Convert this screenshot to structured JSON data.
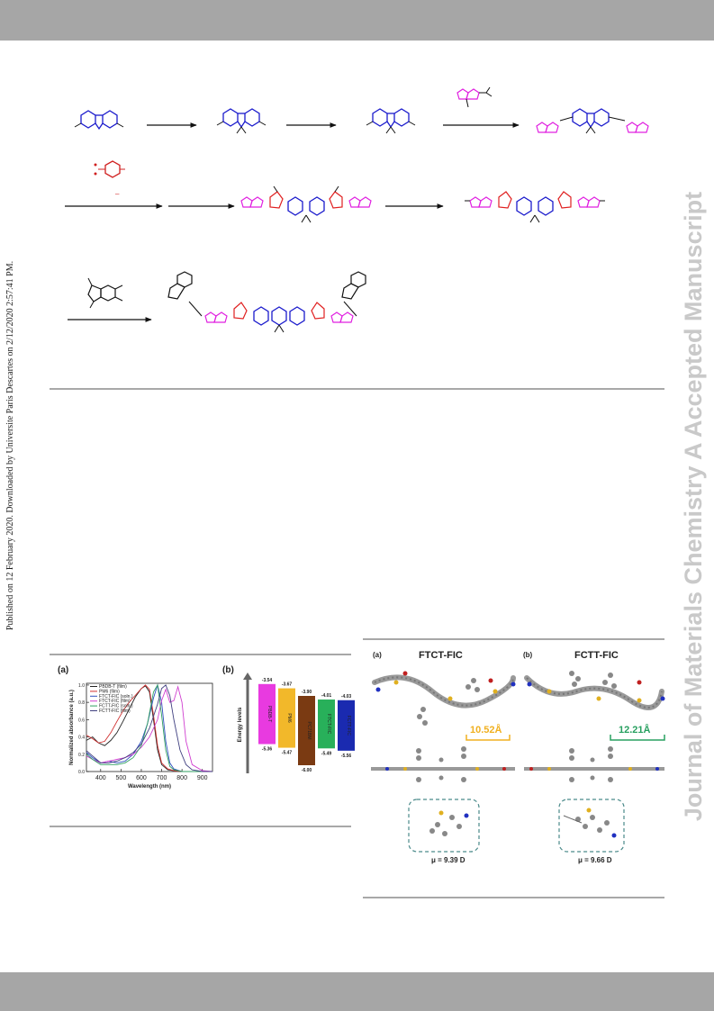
{
  "side_note": "Published on 12 February 2020. Downloaded by Universite Paris Descartes on 2/12/2020 2:57:41 PM.",
  "watermark": "Journal of Materials Chemistry A Accepted Manuscript",
  "fig_absorption": {
    "panel_label": "(a)",
    "legend": [
      {
        "name": "PBDB-T (film)",
        "color": "#222222"
      },
      {
        "name": "PM6 (film)",
        "color": "#d03030"
      },
      {
        "name": "FTCT-FIC (soln.)",
        "color": "#3050c0"
      },
      {
        "name": "FTCT-FIC (film)",
        "color": "#d040d0"
      },
      {
        "name": "FCTT-FIC (soln.)",
        "color": "#30a060"
      },
      {
        "name": "FCTT-FIC (film)",
        "color": "#404080"
      }
    ],
    "xlabel": "Wavelength (nm)",
    "ylabel": "Normalized absorbance (a.u.)",
    "xticks": [
      "400",
      "500",
      "600",
      "700",
      "800",
      "900"
    ],
    "yticks": [
      "0.0",
      "0.2",
      "0.4",
      "0.6",
      "0.8",
      "1.0"
    ]
  },
  "chart_data": {
    "type": "line",
    "xlim": [
      330,
      950
    ],
    "ylim": [
      0,
      1.02
    ],
    "series": [
      {
        "name": "PBDB-T (film)",
        "color": "#222222",
        "x": [
          330,
          360,
          390,
          420,
          450,
          480,
          510,
          540,
          570,
          600,
          620,
          640,
          660,
          680,
          700,
          730,
          760,
          800,
          850,
          900,
          950
        ],
        "y": [
          0.36,
          0.4,
          0.33,
          0.3,
          0.36,
          0.45,
          0.58,
          0.72,
          0.86,
          0.96,
          0.99,
          0.92,
          0.6,
          0.25,
          0.08,
          0.02,
          0.01,
          0.0,
          0.0,
          0.0,
          0.0
        ]
      },
      {
        "name": "PM6 (film)",
        "color": "#d03030",
        "x": [
          330,
          360,
          390,
          420,
          450,
          480,
          510,
          540,
          570,
          600,
          620,
          640,
          660,
          680,
          700,
          730,
          760,
          800,
          850,
          900,
          950
        ],
        "y": [
          0.42,
          0.38,
          0.33,
          0.35,
          0.45,
          0.58,
          0.7,
          0.8,
          0.88,
          0.96,
          1.0,
          0.95,
          0.65,
          0.3,
          0.1,
          0.03,
          0.01,
          0.0,
          0.0,
          0.0,
          0.0
        ]
      },
      {
        "name": "FTCT-FIC (soln.)",
        "color": "#3050c0",
        "x": [
          330,
          360,
          400,
          440,
          480,
          520,
          560,
          600,
          630,
          660,
          680,
          700,
          720,
          740,
          760,
          800,
          850,
          900,
          950
        ],
        "y": [
          0.22,
          0.16,
          0.1,
          0.12,
          0.1,
          0.12,
          0.2,
          0.35,
          0.55,
          0.85,
          1.0,
          0.8,
          0.35,
          0.1,
          0.03,
          0.0,
          0.0,
          0.0,
          0.0
        ]
      },
      {
        "name": "FTCT-FIC (film)",
        "color": "#d040d0",
        "x": [
          330,
          360,
          400,
          440,
          480,
          520,
          560,
          600,
          640,
          680,
          700,
          720,
          740,
          760,
          780,
          800,
          820,
          850,
          900,
          950
        ],
        "y": [
          0.18,
          0.14,
          0.1,
          0.12,
          0.14,
          0.16,
          0.2,
          0.28,
          0.4,
          0.6,
          0.82,
          0.95,
          0.8,
          0.82,
          0.98,
          0.8,
          0.35,
          0.08,
          0.01,
          0.0
        ]
      },
      {
        "name": "FCTT-FIC (soln.)",
        "color": "#30a060",
        "x": [
          330,
          360,
          400,
          440,
          480,
          520,
          560,
          600,
          630,
          660,
          680,
          700,
          720,
          740,
          760,
          800,
          850,
          900,
          950
        ],
        "y": [
          0.2,
          0.14,
          0.08,
          0.08,
          0.08,
          0.1,
          0.16,
          0.3,
          0.55,
          0.92,
          1.0,
          0.65,
          0.25,
          0.06,
          0.02,
          0.0,
          0.0,
          0.0,
          0.0
        ]
      },
      {
        "name": "FCTT-FIC (film)",
        "color": "#404080",
        "x": [
          330,
          360,
          400,
          440,
          480,
          520,
          560,
          600,
          640,
          680,
          700,
          720,
          740,
          760,
          790,
          820,
          850,
          900,
          950
        ],
        "y": [
          0.24,
          0.18,
          0.1,
          0.1,
          0.12,
          0.16,
          0.22,
          0.32,
          0.5,
          0.78,
          0.96,
          1.0,
          0.88,
          0.6,
          0.25,
          0.08,
          0.02,
          0.0,
          0.0
        ]
      }
    ]
  },
  "fig_energy": {
    "panel_label": "(b)",
    "axis_label": "Energy levels",
    "boxes": [
      {
        "name": "PBDB-T",
        "lumo": "-3.54",
        "homo": "-5.36",
        "color": "#e83ae0",
        "lumo_color": "#c030c0"
      },
      {
        "name": "PM6",
        "lumo": "-3.67",
        "homo": "-5.47",
        "color": "#f2b82a",
        "lumo_color": "#d09820"
      },
      {
        "name": "PC71BM",
        "lumo": "-3.90",
        "homo": "-6.00",
        "color": "#7a3a12",
        "lumo_color": "#5a2a0a"
      },
      {
        "name": "FTCT-FIC",
        "lumo": "-4.01",
        "homo": "-5.49",
        "color": "#28b05a",
        "lumo_color": "#209048"
      },
      {
        "name": "FCTT-FIC",
        "lumo": "-4.03",
        "homo": "-5.56",
        "color": "#1a2ab0",
        "lumo_color": "#1a2a90"
      }
    ]
  },
  "fig_structures": {
    "panels": [
      {
        "label": "(a)",
        "title": "FTCT-FIC",
        "distance": "10.52Å",
        "distance_color": "#f0b020",
        "dipole": "μ = 9.39 D"
      },
      {
        "label": "(b)",
        "title": "FCTT-FIC",
        "distance": "12.21Å",
        "distance_color": "#28a060",
        "dipole": "μ = 9.66 D"
      }
    ]
  },
  "scheme": {
    "reagent_bottom_mark": "–"
  }
}
